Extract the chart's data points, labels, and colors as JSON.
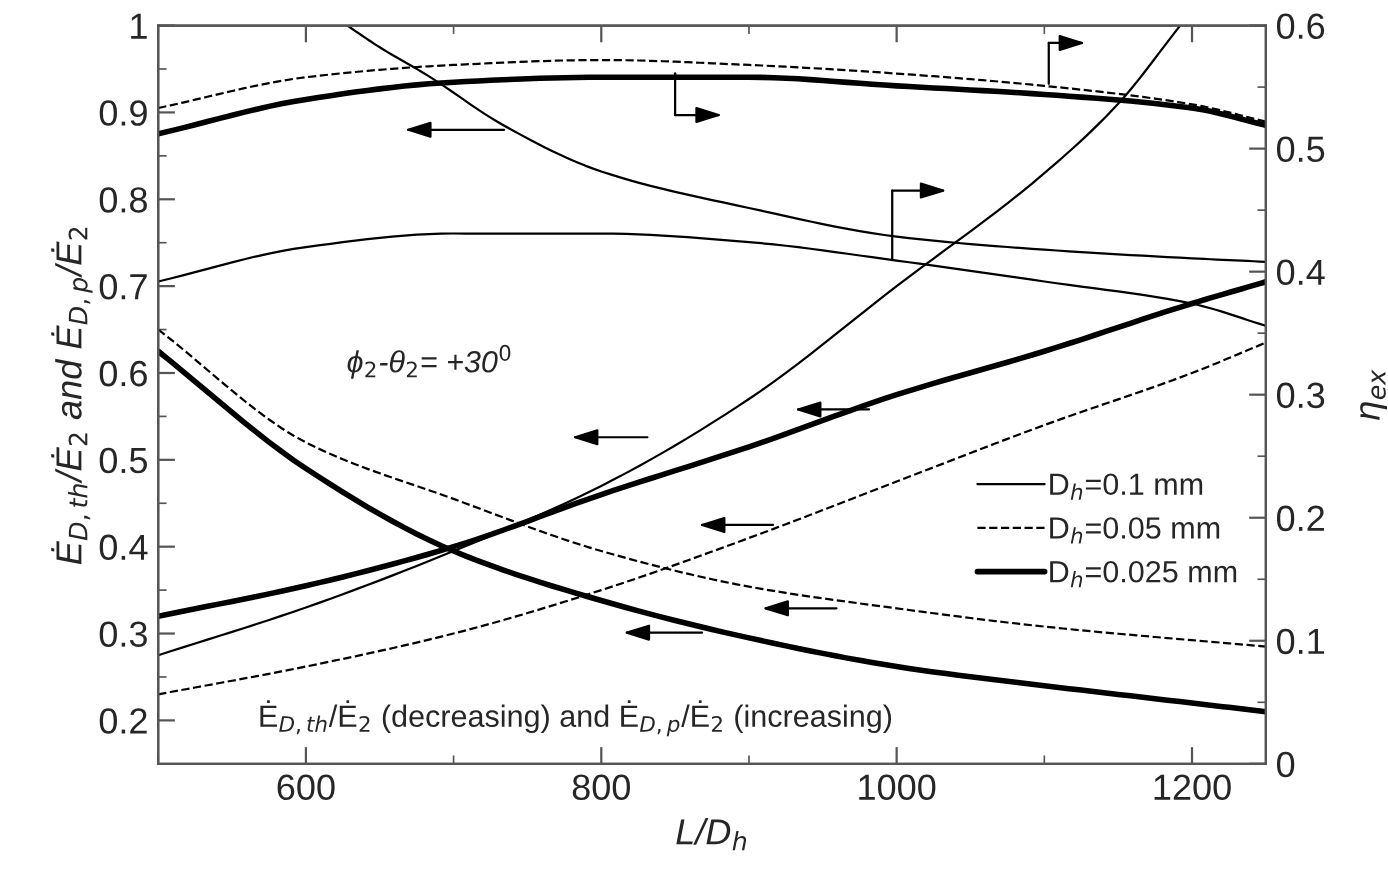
{
  "chart_data": {
    "type": "line",
    "xlabel": "L/D$_{h}$",
    "ylabel": "Ė$_{D,th}$/Ė$_{2}$ and Ė$_{D,p}$/Ė$_{2}$",
    "y2label": "η$_{ex}$",
    "xlim": [
      500,
      1250
    ],
    "xticks": [
      600,
      800,
      1000,
      1200
    ],
    "ylim": [
      0.15,
      1
    ],
    "yticks": [
      0.2,
      0.3,
      0.4,
      0.5,
      0.6,
      0.7,
      0.8,
      0.9,
      1
    ],
    "y2lim": [
      0,
      0.6
    ],
    "y2ticks": [
      0,
      0.1,
      0.2,
      0.3,
      0.4,
      0.5,
      0.6
    ],
    "grid": false,
    "legend": "bottom right",
    "marker": "none",
    "annotations": [
      "ϕ$_{2}$-θ$_{2}$= +30$^{0}$",
      "Ė$_{D,th}$/Ė$_{2}$ (decreasing) and Ė$_{D,p}$/Ė$_{2}$ (increasing)"
    ],
    "series": [
      {
        "name": "D$_{h}$=0.1 mm",
        "color": "#000000",
        "axis": "y2",
        "line_style": "solid",
        "x": [
          500,
          600,
          700,
          800,
          900,
          1000,
          1100,
          1200,
          1250
        ],
        "values": [
          0.392,
          0.42,
          0.431,
          0.431,
          0.424,
          0.409,
          0.392,
          0.374,
          0.356
        ]
      },
      {
        "name": "D$_{h}$=0.05 mm",
        "color": "#000000",
        "axis": "y2",
        "line_style": "dashed",
        "x": [
          500,
          600,
          700,
          800,
          900,
          1000,
          1100,
          1200,
          1250
        ],
        "values": [
          0.533,
          0.558,
          0.568,
          0.572,
          0.568,
          0.561,
          0.551,
          0.536,
          0.522
        ]
      },
      {
        "name": "D$_{h}$=0.025 mm",
        "color": "#000000",
        "axis": "y2",
        "line_style": "solid",
        "x": [
          500,
          600,
          700,
          800,
          900,
          1000,
          1100,
          1200,
          1250
        ],
        "values": [
          0.512,
          0.54,
          0.554,
          0.558,
          0.558,
          0.551,
          0.544,
          0.533,
          0.519
        ]
      },
      {
        "color": "#000000",
        "line_style": "solid",
        "x": [
          628,
          650,
          682,
          734,
          800,
          900,
          1000,
          1100,
          1200,
          1250
        ],
        "values": [
          1.0,
          0.975,
          0.943,
          0.885,
          0.832,
          0.79,
          0.757,
          0.742,
          0.732,
          0.728
        ]
      },
      {
        "color": "#000000",
        "line_style": "solid",
        "x": [
          500,
          600,
          700,
          800,
          900,
          1000,
          1100,
          1150,
          1192
        ],
        "values": [
          0.275,
          0.33,
          0.395,
          0.47,
          0.57,
          0.7,
          0.83,
          0.91,
          1.0
        ]
      },
      {
        "color": "#000000",
        "line_style": "dashed",
        "x": [
          500,
          600,
          700,
          800,
          900,
          1000,
          1100,
          1250
        ],
        "values": [
          0.65,
          0.52,
          0.455,
          0.395,
          0.354,
          0.329,
          0.308,
          0.285
        ]
      },
      {
        "color": "#000000",
        "line_style": "dashed",
        "x": [
          500,
          600,
          700,
          800,
          900,
          1000,
          1100,
          1200,
          1250
        ],
        "values": [
          0.23,
          0.262,
          0.3,
          0.35,
          0.41,
          0.475,
          0.54,
          0.6,
          0.635
        ]
      },
      {
        "color": "#000000",
        "line_style": "solid",
        "x": [
          500,
          600,
          700,
          800,
          900,
          1000,
          1100,
          1200,
          1250
        ],
        "values": [
          0.625,
          0.49,
          0.395,
          0.338,
          0.295,
          0.262,
          0.24,
          0.22,
          0.21
        ]
      },
      {
        "color": "#000000",
        "line_style": "solid",
        "x": [
          500,
          600,
          700,
          800,
          900,
          1000,
          1100,
          1200,
          1250
        ],
        "values": [
          0.32,
          0.355,
          0.4,
          0.46,
          0.515,
          0.575,
          0.625,
          0.68,
          0.705
        ]
      }
    ]
  }
}
